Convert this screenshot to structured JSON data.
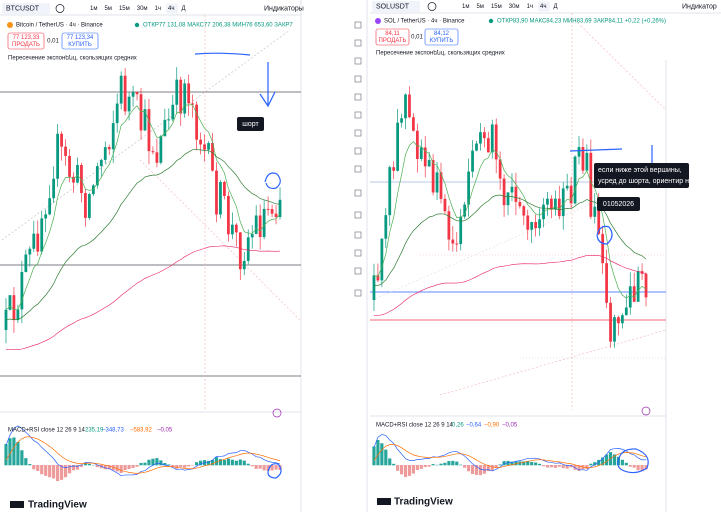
{
  "left": {
    "symbol": "BTCUSDT",
    "timeframes": [
      "1м",
      "5м",
      "15м",
      "30м",
      "1ч",
      "4ч",
      "Д"
    ],
    "indicators_button": "Индикаторы",
    "pair_title": "Bitcoin / TetherUS · 4ч · Binance",
    "ohlc": "ОТКР77 131,08 МАКС77 206,38 МИН76 653,60 ЗАКР7",
    "sell": {
      "price": "77 123,33",
      "label": "ПРОДАТЬ"
    },
    "spread": "0,01",
    "buy": {
      "price": "77 123,34",
      "label": "КУПИТЬ"
    },
    "indicator_name": "Пересечение экспонենц. скользящих средних",
    "annotation": "шорт",
    "macd": {
      "name": "MACD+RSI close 12 26 9 14",
      "values": [
        "235,19",
        "−348,73",
        "−583,92",
        "−0,05"
      ]
    },
    "brand": "TradingView"
  },
  "right": {
    "symbol": "SOLUSDT",
    "timeframes": [
      "1м",
      "5м",
      "15м",
      "30м",
      "1ч",
      "4ч",
      "Д"
    ],
    "indicators_button": "Индикатор",
    "pair_title": "SOL / TetherUS · 4ч · Binance",
    "ohlc": "ОТКР83,90 МАКС84,23 МИН83,69 ЗАКР84,11 +0,22 (+0,26%)",
    "sell": {
      "price": "84,11",
      "label": "ПРОДАТЬ"
    },
    "spread": "0,01",
    "buy": {
      "price": "84,12",
      "label": "КУПИТЬ"
    },
    "indicator_name": "Пересечение экспонենц. скользящих средних",
    "annotation": [
      "если ниже этой вершины,",
      "усред до шорта, ориентир на битток"
    ],
    "date_label": "01052026",
    "macd": {
      "name": "MACD+RSI close 12 26 9 14",
      "values": [
        "0,26",
        "−0,64",
        "−0,90",
        "−0,05"
      ]
    },
    "brand": "TradingView"
  }
}
